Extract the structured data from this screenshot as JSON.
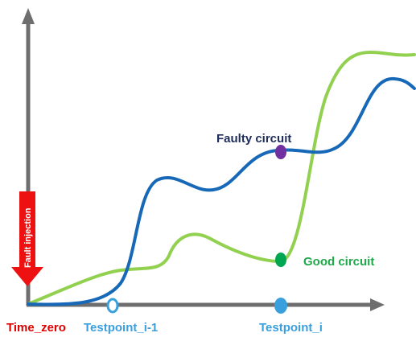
{
  "labels": {
    "faulty_circuit": "Faulty circuit",
    "good_circuit": "Good circuit",
    "fault_injection": "Fault injection",
    "time_zero": "Time_zero",
    "testpoint_prev": "Testpoint_i-1",
    "testpoint_curr": "Testpoint_i"
  },
  "colors": {
    "axis": "#6e6e6e",
    "faulty_curve": "#1769b8",
    "good_curve": "#92d050",
    "faulty_label": "#1f2d5c",
    "good_label": "#1fa84a",
    "faulty_marker": "#7030a0",
    "good_marker": "#00a650",
    "fault_injection_arrow": "#ee1111",
    "time_zero_label": "#e00000",
    "testpoint_label": "#3aa0dd",
    "testpoint_marker": "#3aa0dd"
  },
  "icons": {
    "fault_injection": "down-arrow-icon"
  }
}
